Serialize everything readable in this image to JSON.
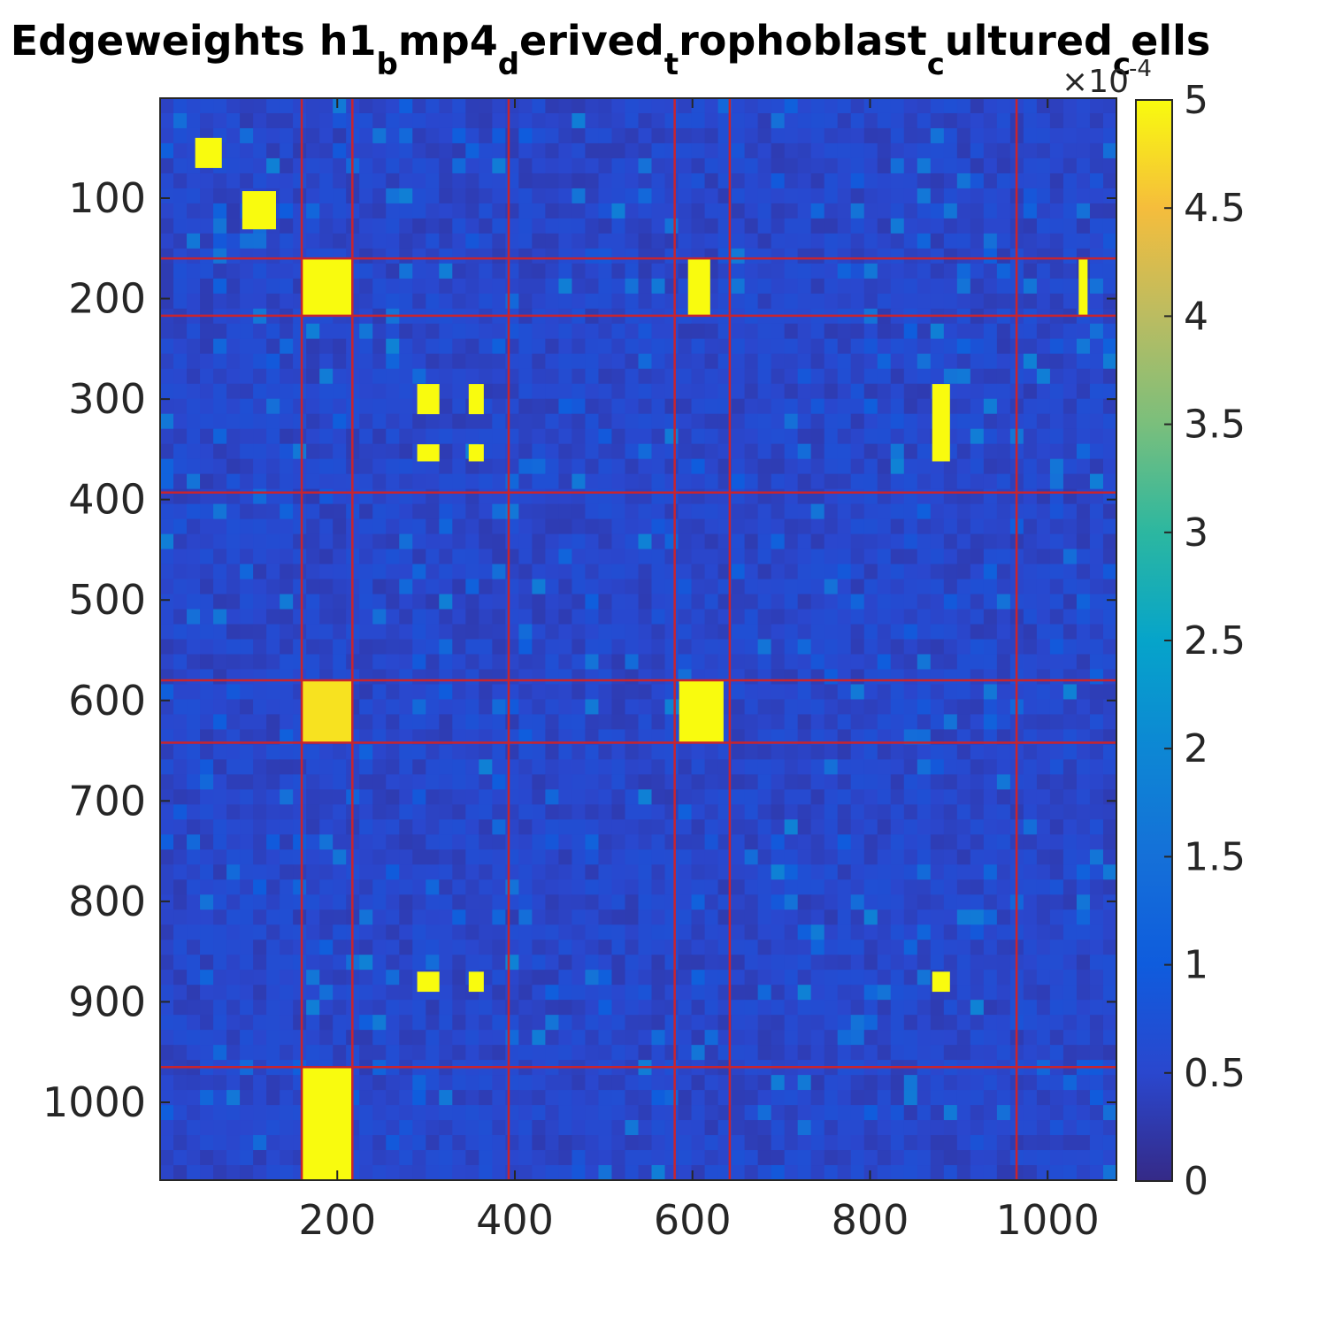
{
  "chart_data": {
    "type": "heatmap",
    "title": {
      "segments": [
        {
          "text": "Edgeweights h1",
          "sub": false
        },
        {
          "text": "b",
          "sub": true
        },
        {
          "text": "mp4",
          "sub": false
        },
        {
          "text": "d",
          "sub": true
        },
        {
          "text": "erived",
          "sub": false
        },
        {
          "text": "t",
          "sub": true
        },
        {
          "text": "rophoblast",
          "sub": false
        },
        {
          "text": "c",
          "sub": true
        },
        {
          "text": "ultured",
          "sub": false
        },
        {
          "text": "c",
          "sub": true
        },
        {
          "text": "ells",
          "sub": false
        }
      ]
    },
    "matrix_size": 1077,
    "x_ticks": [
      200,
      400,
      600,
      800,
      1000
    ],
    "y_ticks": [
      100,
      200,
      300,
      400,
      500,
      600,
      700,
      800,
      900,
      1000
    ],
    "colorbar": {
      "colormap": "parula",
      "ticks": [
        "0",
        "0.5",
        "1",
        "1.5",
        "2",
        "2.5",
        "3",
        "3.5",
        "4",
        "4.5",
        "5"
      ],
      "range": [
        0,
        5
      ],
      "exponent_prefix": "×10",
      "exponent": "-4"
    },
    "cluster_boundaries": [
      160,
      217,
      393,
      580,
      642,
      965
    ],
    "high_weight_blocks": [
      {
        "rows": [
          40,
          70
        ],
        "cols": [
          40,
          70
        ],
        "value": 5
      },
      {
        "rows": [
          93,
          131
        ],
        "cols": [
          93,
          131
        ],
        "value": 5
      },
      {
        "rows": [
          160,
          217
        ],
        "cols": [
          160,
          217
        ],
        "value": 5
      },
      {
        "rows": [
          285,
          315
        ],
        "cols": [
          290,
          315
        ],
        "value": 5
      },
      {
        "rows": [
          285,
          315
        ],
        "cols": [
          348,
          365
        ],
        "value": 5
      },
      {
        "rows": [
          345,
          362
        ],
        "cols": [
          290,
          315
        ],
        "value": 5
      },
      {
        "rows": [
          345,
          362
        ],
        "cols": [
          348,
          365
        ],
        "value": 5
      },
      {
        "rows": [
          580,
          642
        ],
        "cols": [
          585,
          635
        ],
        "value": 5
      },
      {
        "rows": [
          580,
          642
        ],
        "cols": [
          160,
          217
        ],
        "value": 4.8
      },
      {
        "rows": [
          965,
          1077
        ],
        "cols": [
          160,
          217
        ],
        "value": 5
      },
      {
        "rows": [
          160,
          217
        ],
        "cols": [
          595,
          620
        ],
        "value": 5
      },
      {
        "rows": [
          160,
          217
        ],
        "cols": [
          1035,
          1045
        ],
        "value": 5
      },
      {
        "rows": [
          870,
          890
        ],
        "cols": [
          290,
          315
        ],
        "value": 5
      },
      {
        "rows": [
          870,
          890
        ],
        "cols": [
          348,
          365
        ],
        "value": 5
      },
      {
        "rows": [
          285,
          362
        ],
        "cols": [
          870,
          890
        ],
        "value": 5
      },
      {
        "rows": [
          870,
          890
        ],
        "cols": [
          870,
          890
        ],
        "value": 5
      }
    ],
    "background_value": 0.3,
    "grid": false,
    "legend": "none"
  },
  "colors": {
    "boundary_line": "#c8242e",
    "parula_low": "#352a87",
    "parula_high": "#f9fb0e"
  }
}
